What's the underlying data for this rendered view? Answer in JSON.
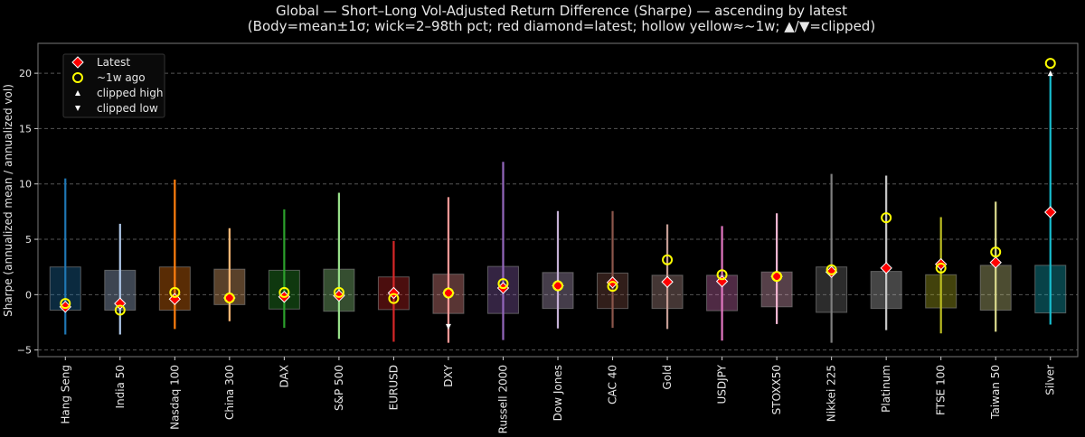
{
  "chart_data": {
    "type": "box",
    "title": "Global — Short–Long Vol-Adjusted Return Difference (Sharpe) — ascending by latest",
    "subtitle": "(Body=mean±1σ; wick=2–98th pct; red diamond=latest; hollow yellow≈~1w; ▲/▼=clipped)",
    "xlabel": "",
    "ylabel": "Sharpe (annualized mean / annualized vol)",
    "ylim": [
      -5.6,
      22.7
    ],
    "yticks": [
      -5,
      0,
      5,
      10,
      15,
      20
    ],
    "clip_high": 20,
    "grid": true,
    "legend_position": "top-left",
    "legend": [
      "Latest",
      "~1w ago",
      "clipped high",
      "clipped low"
    ],
    "colors": {
      "latest": "#ff0000",
      "week_ago": "#ffff00",
      "clip_marker": "#ffffff",
      "background": "#000000"
    },
    "categories": [
      "Hang Seng",
      "India 50",
      "Nasdaq 100",
      "China 300",
      "DAX",
      "S&P 500",
      "EURUSD",
      "DXY",
      "Russell 2000",
      "Dow Jones",
      "CAC 40",
      "Gold",
      "USDJPY",
      "STOXX50",
      "Nikkei 225",
      "Platinum",
      "FTSE 100",
      "Taiwan 50",
      "Silver"
    ],
    "series_colors": [
      "#1f77b4",
      "#aec7e8",
      "#ff7f0e",
      "#ffbb78",
      "#2ca02c",
      "#98df8a",
      "#d62728",
      "#ff9896",
      "#9467bd",
      "#c5b0d5",
      "#8c564b",
      "#c49c94",
      "#e377c2",
      "#f7b6d2",
      "#7f7f7f",
      "#c7c7c7",
      "#bcbd22",
      "#dbdb8d",
      "#17becf"
    ],
    "body_high": [
      2.5,
      2.2,
      2.5,
      2.3,
      2.2,
      2.3,
      1.6,
      1.85,
      2.55,
      2.0,
      1.95,
      1.75,
      1.75,
      2.05,
      2.5,
      2.1,
      1.8,
      2.65,
      2.65
    ],
    "body_low": [
      -1.4,
      -1.4,
      -1.4,
      -0.9,
      -1.3,
      -1.5,
      -1.35,
      -1.7,
      -1.7,
      -1.25,
      -1.25,
      -1.25,
      -1.45,
      -1.1,
      -1.6,
      -1.25,
      -1.2,
      -1.4,
      -1.65
    ],
    "wick_high": [
      10.5,
      6.4,
      10.4,
      6.0,
      7.7,
      9.2,
      4.85,
      8.8,
      12.0,
      7.55,
      7.55,
      6.35,
      6.2,
      7.35,
      10.9,
      10.75,
      7.0,
      8.4,
      20
    ],
    "wick_low": [
      -3.6,
      -3.6,
      -3.1,
      -2.4,
      -3.0,
      -4.0,
      -4.25,
      -4.35,
      -4.1,
      -3.05,
      -3.0,
      -3.1,
      -4.15,
      -2.65,
      -4.35,
      -3.2,
      -3.5,
      -3.35,
      -2.7
    ],
    "latest": [
      -1.1,
      -0.8,
      -0.4,
      -0.3,
      -0.2,
      -0.1,
      0.15,
      0.15,
      0.6,
      0.8,
      1.1,
      1.15,
      1.2,
      1.65,
      2.05,
      2.4,
      2.75,
      2.9,
      7.45
    ],
    "week_ago": [
      -0.8,
      -1.4,
      0.2,
      -0.3,
      0.2,
      0.2,
      -0.35,
      0.15,
      1.0,
      0.8,
      0.75,
      3.15,
      1.8,
      1.65,
      2.25,
      6.95,
      2.4,
      3.85,
      20.9
    ],
    "clipped_high": [
      "Silver"
    ],
    "clipped_low": [
      "DXY"
    ]
  }
}
